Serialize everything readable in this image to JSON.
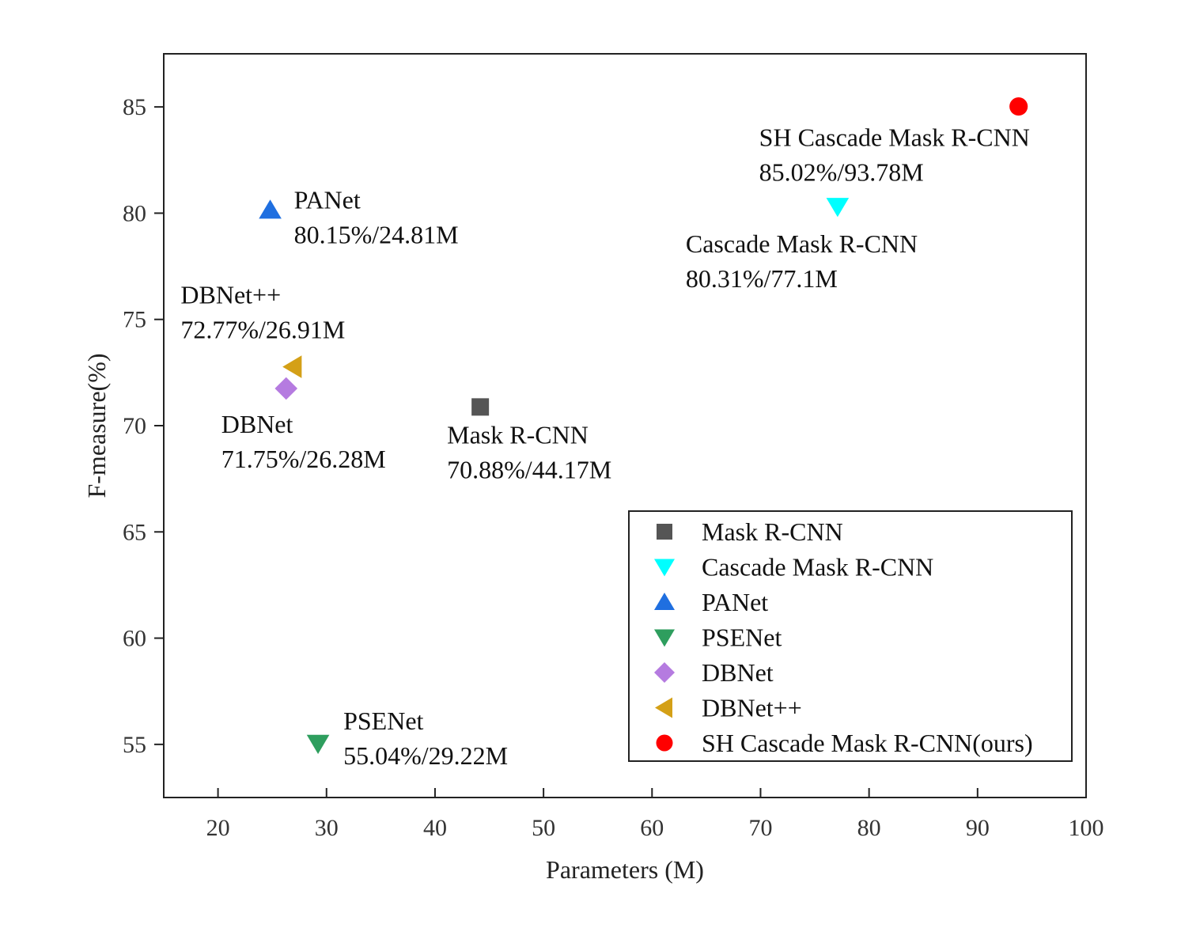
{
  "chart_data": {
    "type": "scatter",
    "title": "",
    "xlabel": "Parameters (M)",
    "ylabel": "F-measure(%)",
    "xlim": [
      15,
      100
    ],
    "ylim": [
      52.5,
      87.5
    ],
    "xticks": [
      20,
      30,
      40,
      50,
      60,
      70,
      80,
      90,
      100
    ],
    "yticks": [
      55,
      60,
      65,
      70,
      75,
      80,
      85
    ],
    "grid": false,
    "legend_position": "bottom-right",
    "series": [
      {
        "name": "Mask R-CNN",
        "marker": "square",
        "color": "#555555",
        "x": 44.17,
        "y": 70.88,
        "label_name": "Mask R-CNN",
        "label_value": "70.88%/44.17M",
        "label_side": "below"
      },
      {
        "name": "Cascade Mask R-CNN",
        "marker": "triangle-down",
        "color": "#00ffff",
        "x": 77.1,
        "y": 80.31,
        "label_name": "Cascade Mask R-CNN",
        "label_value": "80.31%/77.1M",
        "label_side": "below-left"
      },
      {
        "name": "PANet",
        "marker": "triangle-up",
        "color": "#1f6fe0",
        "x": 24.81,
        "y": 80.15,
        "label_name": "PANet",
        "label_value": "80.15%/24.81M",
        "label_side": "right"
      },
      {
        "name": "PSENet",
        "marker": "triangle-down",
        "color": "#2e9e5e",
        "x": 29.22,
        "y": 55.04,
        "label_name": "PSENet",
        "label_value": "55.04%/29.22M",
        "label_side": "right"
      },
      {
        "name": "DBNet",
        "marker": "diamond",
        "color": "#b57be0",
        "x": 26.28,
        "y": 71.75,
        "label_name": "DBNet",
        "label_value": "71.75%/26.28M",
        "label_side": "below"
      },
      {
        "name": "DBNet++",
        "marker": "triangle-left",
        "color": "#d4a017",
        "x": 26.91,
        "y": 72.77,
        "label_name": "DBNet++",
        "label_value": "72.77%/26.91M",
        "label_side": "above-left"
      },
      {
        "name": "SH Cascade Mask R-CNN(ours)",
        "marker": "circle",
        "color": "#ff0000",
        "x": 93.78,
        "y": 85.02,
        "label_name": "SH Cascade Mask R-CNN",
        "label_value": "85.02%/93.78M",
        "label_side": "below-left"
      }
    ]
  }
}
